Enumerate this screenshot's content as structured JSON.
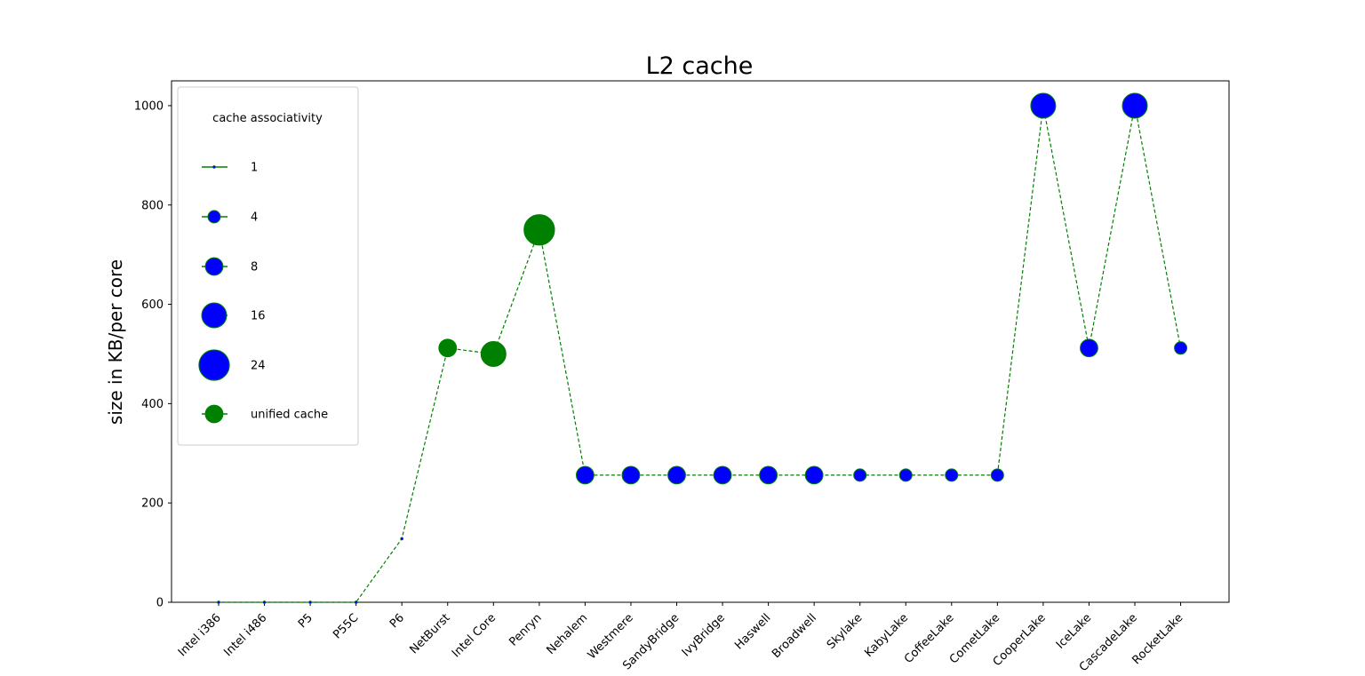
{
  "chart_data": {
    "type": "scatter",
    "title": "L2 cache",
    "xlabel": "",
    "ylabel": "size in KB/per core",
    "ylim": [
      0,
      1050
    ],
    "yticks": [
      0,
      200,
      400,
      600,
      800,
      1000
    ],
    "grid": false,
    "categories": [
      "Intel i386",
      "Intel i486",
      "P5",
      "P55C",
      "P6",
      "NetBurst",
      "Intel Core",
      "Penryn",
      "Nehalem",
      "Westmere",
      "SandyBridge",
      "IvyBridge",
      "Haswell",
      "Broadwell",
      "Skylake",
      "KabyLake",
      "CoffeeLake",
      "CometLake",
      "CooperLake",
      "IceLake",
      "CascadeLake",
      "RocketLake"
    ],
    "values": [
      0,
      0,
      0,
      0,
      128,
      512,
      500,
      750,
      256,
      256,
      256,
      256,
      256,
      256,
      256,
      256,
      256,
      256,
      1000,
      512,
      1000,
      512
    ],
    "associativity": [
      1,
      1,
      1,
      1,
      1,
      8,
      16,
      24,
      8,
      8,
      8,
      8,
      8,
      8,
      4,
      4,
      4,
      4,
      16,
      8,
      16,
      4
    ],
    "unified": [
      false,
      false,
      false,
      false,
      false,
      true,
      true,
      true,
      false,
      false,
      false,
      false,
      false,
      false,
      false,
      false,
      false,
      false,
      false,
      false,
      false,
      false
    ],
    "line_style": "dashed",
    "colors": {
      "line": "#008000",
      "marker": "#0000ff",
      "unified": "#008000",
      "edge": "#008000"
    },
    "legend": {
      "position": "upper-left",
      "title": "cache associativity",
      "entries": [
        {
          "label": "1",
          "assoc": 1,
          "unified": false
        },
        {
          "label": "4",
          "assoc": 4,
          "unified": false
        },
        {
          "label": "8",
          "assoc": 8,
          "unified": false
        },
        {
          "label": "16",
          "assoc": 16,
          "unified": false
        },
        {
          "label": "24",
          "assoc": 24,
          "unified": false
        },
        {
          "label": "unified cache",
          "assoc": 8,
          "unified": true
        }
      ]
    }
  }
}
